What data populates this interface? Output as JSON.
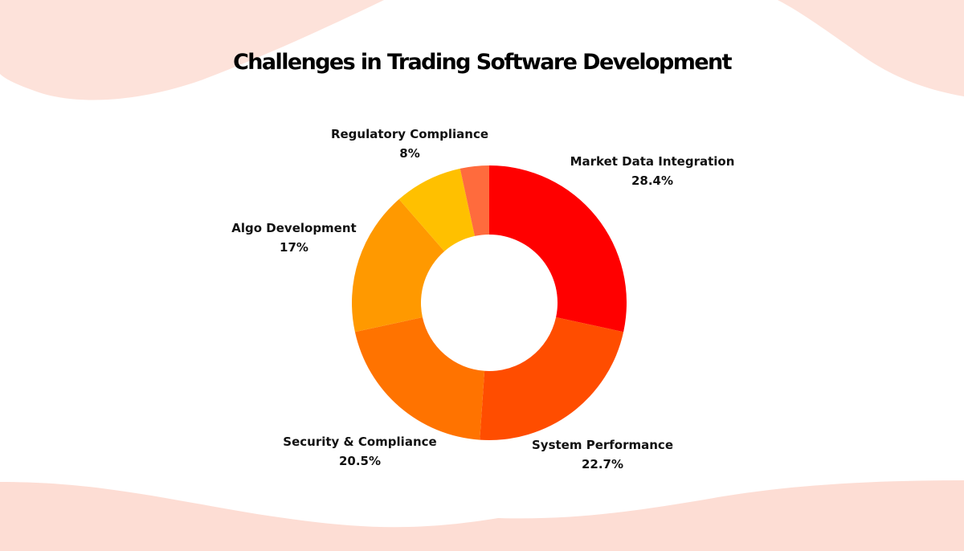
{
  "page": {
    "background_color": "#FFFFFF",
    "blob_color": "#FDDDD4"
  },
  "chart_data": {
    "type": "pie",
    "variant": "donut",
    "title": "Challenges in Trading Software Development",
    "categories": [
      "Market Data Integration",
      "System Performance",
      "Security & Compliance",
      "Algo Development",
      "Regulatory Compliance",
      ""
    ],
    "values": [
      28.4,
      22.7,
      20.5,
      17,
      8,
      3.4
    ],
    "colors": [
      "#FF0000",
      "#FF4D00",
      "#FF7300",
      "#FF9900",
      "#FFC000",
      "#FF6B3D"
    ],
    "start_angle_deg": 0,
    "direction": "clockwise",
    "inner_radius_ratio": 0.5,
    "legend": "none",
    "labels": [
      {
        "name": "Market Data Integration",
        "value": "28.4%"
      },
      {
        "name": "System Performance",
        "value": "22.7%"
      },
      {
        "name": "Security & Compliance",
        "value": "20.5%"
      },
      {
        "name": "Algo Development",
        "value": "17%"
      },
      {
        "name": "Regulatory Compliance",
        "value": "8%"
      }
    ]
  }
}
